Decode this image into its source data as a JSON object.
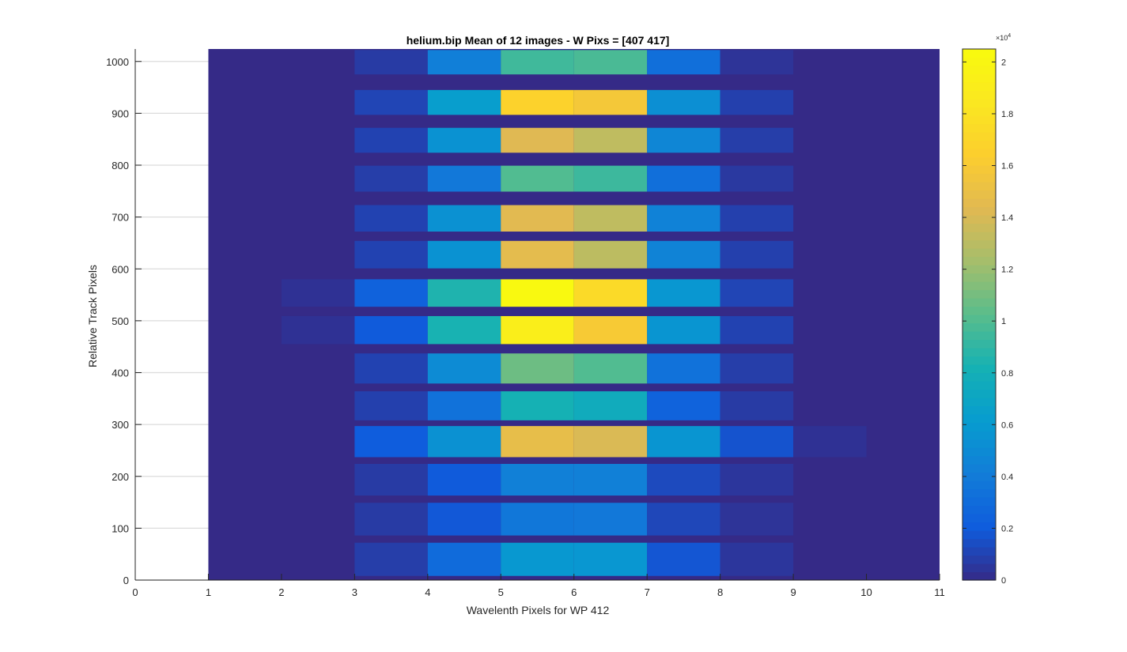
{
  "chart_data": {
    "type": "heatmap",
    "title": "helium.bip  Mean of 12 images - W Pixs = [407  417]",
    "xlabel": "Wavelenth Pixels for WP 412",
    "ylabel": "Relative Track Pixels",
    "xlim": [
      0,
      11
    ],
    "ylim": [
      0,
      1024
    ],
    "x_ticks": [
      "0",
      "1",
      "2",
      "3",
      "4",
      "5",
      "6",
      "7",
      "8",
      "9",
      "10",
      "11"
    ],
    "y_ticks": [
      "0",
      "100",
      "200",
      "300",
      "400",
      "500",
      "600",
      "700",
      "800",
      "900",
      "1000"
    ],
    "grid": "horizontal",
    "colormap": "parula",
    "colorbar": {
      "range": [
        0,
        20500
      ],
      "tick_labels": [
        "0",
        "0.2",
        "0.4",
        "0.6",
        "0.8",
        "1",
        "1.2",
        "1.4",
        "1.6",
        "1.8",
        "2"
      ],
      "tick_values": [
        0,
        2000,
        4000,
        6000,
        8000,
        10000,
        12000,
        14000,
        16000,
        18000,
        20000
      ],
      "multiplier_base": "×10",
      "multiplier_exp": "4"
    },
    "columns": [
      1,
      2,
      3,
      4,
      5,
      6,
      7,
      8,
      9,
      10
    ],
    "background_value": 0,
    "bands": [
      {
        "y0": 975,
        "y1": 1022,
        "values": [
          0,
          0,
          700,
          4200,
          9500,
          9800,
          3200,
          400,
          0,
          0
        ]
      },
      {
        "y0": 897,
        "y1": 945,
        "values": [
          0,
          0,
          1100,
          6300,
          16700,
          15800,
          5300,
          900,
          0,
          0
        ]
      },
      {
        "y0": 824,
        "y1": 872,
        "values": [
          0,
          0,
          1000,
          5500,
          14300,
          13200,
          4700,
          800,
          0,
          0
        ]
      },
      {
        "y0": 749,
        "y1": 799,
        "values": [
          0,
          0,
          800,
          3800,
          10000,
          9400,
          3200,
          600,
          0,
          0
        ]
      },
      {
        "y0": 672,
        "y1": 723,
        "values": [
          0,
          0,
          1000,
          5400,
          14400,
          13200,
          4400,
          900,
          0,
          0
        ]
      },
      {
        "y0": 601,
        "y1": 654,
        "values": [
          0,
          0,
          1000,
          5500,
          14600,
          13100,
          4500,
          900,
          0,
          0
        ]
      },
      {
        "y0": 527,
        "y1": 580,
        "values": [
          0,
          300,
          2400,
          8500,
          20300,
          17400,
          5800,
          1100,
          0,
          0
        ]
      },
      {
        "y0": 455,
        "y1": 509,
        "values": [
          0,
          300,
          2000,
          8300,
          19200,
          16000,
          5700,
          1000,
          0,
          0
        ]
      },
      {
        "y0": 379,
        "y1": 437,
        "values": [
          0,
          0,
          1000,
          5000,
          10800,
          10000,
          3400,
          800,
          0,
          0
        ]
      },
      {
        "y0": 308,
        "y1": 364,
        "values": [
          0,
          0,
          900,
          3400,
          8200,
          7600,
          2500,
          700,
          0,
          0
        ]
      },
      {
        "y0": 237,
        "y1": 297,
        "values": [
          0,
          0,
          2100,
          5400,
          14800,
          14100,
          5700,
          1700,
          300,
          0
        ]
      },
      {
        "y0": 163,
        "y1": 224,
        "values": [
          0,
          0,
          700,
          2000,
          4300,
          4300,
          1300,
          500,
          0,
          0
        ]
      },
      {
        "y0": 86,
        "y1": 149,
        "values": [
          0,
          0,
          700,
          1900,
          3700,
          3800,
          1200,
          400,
          0,
          0
        ]
      },
      {
        "y0": 8,
        "y1": 72,
        "values": [
          0,
          0,
          800,
          3000,
          5900,
          5800,
          1800,
          500,
          0,
          0
        ]
      }
    ]
  }
}
